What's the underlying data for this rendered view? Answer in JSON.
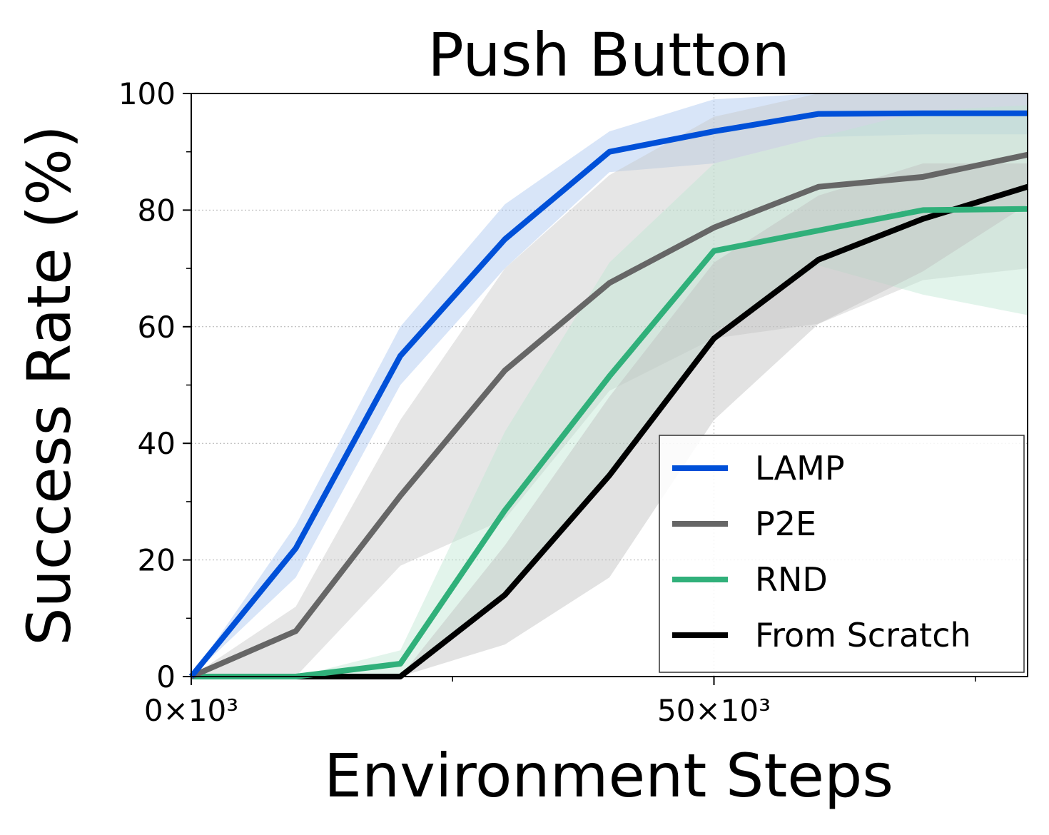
{
  "chart_data": {
    "type": "line",
    "title": "Push Button",
    "xlabel": "Environment Steps",
    "ylabel": "Success Rate (%)",
    "x": [
      0,
      10,
      20,
      30,
      40,
      50,
      60,
      70,
      80
    ],
    "x_unit": "×10³",
    "xlim": [
      0,
      80
    ],
    "ylim": [
      0,
      100
    ],
    "x_ticks": [
      0,
      50
    ],
    "x_tick_labels": [
      "0×10³",
      "50×10³"
    ],
    "y_ticks": [
      0,
      20,
      40,
      60,
      80,
      100
    ],
    "y_tick_labels": [
      "0",
      "20",
      "40",
      "60",
      "80",
      "100"
    ],
    "grid": true,
    "legend_position": "lower-right",
    "series": [
      {
        "name": "LAMP",
        "color": "#0050D8",
        "band_color": "#A9C6F0",
        "values": [
          0,
          22,
          55,
          75,
          90,
          93.5,
          96.5,
          96.6,
          96.6
        ],
        "lower": [
          0,
          17,
          50,
          70,
          86.5,
          88,
          92.5,
          93,
          93
        ],
        "upper": [
          0,
          26,
          60,
          81,
          93.5,
          99,
          100,
          100,
          100
        ]
      },
      {
        "name": "P2E",
        "color": "#666666",
        "band_color": "#C8C8C8",
        "values": [
          0,
          7.8,
          31,
          52.5,
          67.5,
          77,
          84,
          85.7,
          89.5
        ],
        "lower": [
          0,
          0,
          19,
          27,
          49,
          58,
          60.5,
          68,
          70
        ],
        "upper": [
          0,
          12,
          44,
          70,
          86,
          96,
          100,
          100,
          100
        ]
      },
      {
        "name": "RND",
        "color": "#30B07A",
        "band_color": "#BFE6D3",
        "values": [
          0,
          0,
          2.2,
          28.5,
          51.5,
          73,
          76.5,
          80,
          80.2
        ],
        "lower": [
          0,
          0,
          0,
          14,
          34,
          59,
          70.5,
          65.5,
          62
        ],
        "upper": [
          0,
          0,
          4.5,
          42,
          71,
          88,
          92.5,
          97,
          98
        ]
      },
      {
        "name": "From Scratch",
        "color": "#000000",
        "band_color": "#BEBEBE",
        "values": [
          0,
          0,
          0,
          14,
          34.5,
          58,
          71.5,
          78.5,
          84
        ],
        "lower": [
          0,
          0,
          0,
          5.5,
          17,
          44,
          60.5,
          69.5,
          81
        ],
        "upper": [
          0,
          0,
          0,
          22.5,
          48,
          71,
          82.5,
          88,
          88
        ]
      }
    ]
  }
}
